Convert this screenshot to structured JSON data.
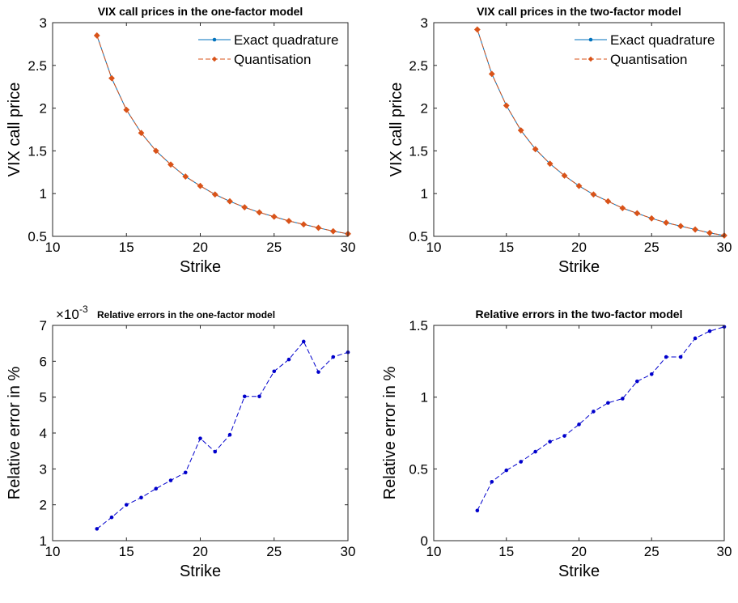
{
  "chart_data": [
    {
      "type": "line",
      "title": "VIX call prices in the one-factor model",
      "xlabel": "Strike",
      "ylabel": "VIX call price",
      "xlim": [
        10,
        30
      ],
      "ylim": [
        0.5,
        3
      ],
      "xticks": [
        "10",
        "15",
        "20",
        "25",
        "30"
      ],
      "yticks": [
        "0.5",
        "1",
        "1.5",
        "2",
        "2.5",
        "3"
      ],
      "legend_position": "top-right",
      "x": [
        13,
        14,
        15,
        16,
        17,
        18,
        19,
        20,
        21,
        22,
        23,
        24,
        25,
        26,
        27,
        28,
        29,
        30
      ],
      "series": [
        {
          "name": "Exact quadrature",
          "color": "#0072bd",
          "style": "solid-dot",
          "values": [
            2.85,
            2.35,
            1.98,
            1.71,
            1.5,
            1.34,
            1.2,
            1.09,
            0.99,
            0.91,
            0.84,
            0.78,
            0.73,
            0.68,
            0.64,
            0.6,
            0.56,
            0.53
          ]
        },
        {
          "name": "Quantisation",
          "color": "#d95319",
          "style": "dashed-diamond",
          "values": [
            2.85,
            2.35,
            1.98,
            1.71,
            1.5,
            1.34,
            1.2,
            1.09,
            0.99,
            0.91,
            0.84,
            0.78,
            0.73,
            0.68,
            0.64,
            0.6,
            0.56,
            0.53
          ]
        }
      ]
    },
    {
      "type": "line",
      "title": "VIX call prices in the two-factor model",
      "xlabel": "Strike",
      "ylabel": "VIX call price",
      "xlim": [
        10,
        30
      ],
      "ylim": [
        0.5,
        3
      ],
      "xticks": [
        "10",
        "15",
        "20",
        "25",
        "30"
      ],
      "yticks": [
        "0.5",
        "1",
        "1.5",
        "2",
        "2.5",
        "3"
      ],
      "legend_position": "top-right",
      "x": [
        13,
        14,
        15,
        16,
        17,
        18,
        19,
        20,
        21,
        22,
        23,
        24,
        25,
        26,
        27,
        28,
        29,
        30
      ],
      "series": [
        {
          "name": "Exact quadrature",
          "color": "#0072bd",
          "style": "solid-dot",
          "values": [
            2.92,
            2.4,
            2.03,
            1.74,
            1.52,
            1.35,
            1.21,
            1.09,
            0.99,
            0.91,
            0.83,
            0.77,
            0.71,
            0.66,
            0.62,
            0.58,
            0.54,
            0.51
          ]
        },
        {
          "name": "Quantisation",
          "color": "#d95319",
          "style": "dashed-diamond",
          "values": [
            2.92,
            2.4,
            2.03,
            1.74,
            1.52,
            1.35,
            1.21,
            1.09,
            0.99,
            0.91,
            0.83,
            0.77,
            0.71,
            0.66,
            0.62,
            0.58,
            0.54,
            0.51
          ]
        }
      ]
    },
    {
      "type": "line",
      "title": "Relative errors in the one-factor model",
      "xlabel": "Strike",
      "ylabel": "Relative error in %",
      "exponent_label": "×10",
      "exponent_power": "-3",
      "xlim": [
        10,
        30
      ],
      "ylim": [
        1,
        7
      ],
      "xticks": [
        "10",
        "15",
        "20",
        "25",
        "30"
      ],
      "yticks": [
        "1",
        "2",
        "3",
        "4",
        "5",
        "6",
        "7"
      ],
      "x": [
        13,
        14,
        15,
        16,
        17,
        18,
        19,
        20,
        21,
        22,
        23,
        24,
        25,
        26,
        27,
        28,
        29,
        30
      ],
      "series": [
        {
          "color": "#0000cc",
          "style": "dashed-dot",
          "values": [
            1.33,
            1.65,
            2.0,
            2.2,
            2.45,
            2.68,
            2.9,
            3.85,
            3.48,
            3.95,
            5.02,
            5.02,
            5.72,
            6.05,
            6.55,
            5.7,
            6.12,
            6.25
          ]
        }
      ]
    },
    {
      "type": "line",
      "title": "Relative errors in the two-factor model",
      "xlabel": "Strike",
      "ylabel": "Relative error in %",
      "xlim": [
        10,
        30
      ],
      "ylim": [
        0,
        1.5
      ],
      "xticks": [
        "10",
        "15",
        "20",
        "25",
        "30"
      ],
      "yticks": [
        "0",
        "0.5",
        "1",
        "1.5"
      ],
      "x": [
        13,
        14,
        15,
        16,
        17,
        18,
        19,
        20,
        21,
        22,
        23,
        24,
        25,
        26,
        27,
        28,
        29,
        30
      ],
      "series": [
        {
          "color": "#0000cc",
          "style": "dashed-dot",
          "values": [
            0.21,
            0.41,
            0.49,
            0.55,
            0.62,
            0.69,
            0.73,
            0.81,
            0.9,
            0.96,
            0.99,
            1.11,
            1.16,
            1.28,
            1.28,
            1.41,
            1.46,
            1.49
          ]
        }
      ]
    }
  ]
}
